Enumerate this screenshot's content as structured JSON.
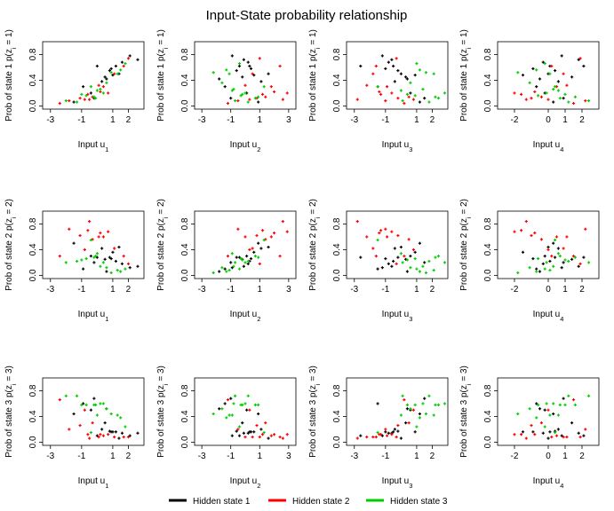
{
  "chart_data": {
    "type": "scatter",
    "title": "Input-State probability relationship",
    "legend": {
      "placement": "bottom-center",
      "entries": [
        {
          "label": "Hidden state 1",
          "color": "#000000"
        },
        {
          "label": "Hidden state 2",
          "color": "#ff0000"
        },
        {
          "label": "Hidden state 3",
          "color": "#00cd00"
        }
      ]
    },
    "panels": [
      {
        "state": 1,
        "input": 1,
        "ylabel": "Prob of state 1 p(z_i = 1)",
        "xlabel": "Input u_1",
        "xlim": [
          -3.5,
          3
        ],
        "ylim": [
          -0.05,
          1.0
        ],
        "xticks": [
          "-3",
          "-1",
          "1",
          "2"
        ],
        "yticks": [
          "0.0",
          "0.4",
          "0.8"
        ]
      },
      {
        "state": 1,
        "input": 2,
        "ylabel": "Prob of state 1 p(z_i = 1)",
        "xlabel": "Input u_2",
        "xlim": [
          -3.5,
          3.5
        ],
        "ylim": [
          -0.05,
          1.0
        ],
        "xticks": [
          "-3",
          "-1",
          "1",
          "3"
        ],
        "yticks": [
          "0.0",
          "0.4",
          "0.8"
        ]
      },
      {
        "state": 1,
        "input": 3,
        "ylabel": "Prob of state 1 p(z_i = 1)",
        "xlabel": "Input u_3",
        "xlim": [
          -3.5,
          3
        ],
        "ylim": [
          -0.05,
          1.0
        ],
        "xticks": [
          "-3",
          "-1",
          "1",
          "2"
        ],
        "yticks": [
          "0.0",
          "0.4",
          "0.8"
        ]
      },
      {
        "state": 1,
        "input": 4,
        "ylabel": "Prob of state 1 p(z_i = 1)",
        "xlabel": "Input u_4",
        "xlim": [
          -3,
          3
        ],
        "ylim": [
          -0.05,
          1.0
        ],
        "xticks": [
          "-2",
          "0",
          "1",
          "2"
        ],
        "yticks": [
          "0.0",
          "0.4",
          "0.8"
        ]
      },
      {
        "state": 2,
        "input": 1,
        "ylabel": "Prob of state 2 p(z_i = 2)",
        "xlabel": "Input u_1",
        "xlim": [
          -3.5,
          3
        ],
        "ylim": [
          -0.05,
          1.0
        ],
        "xticks": [
          "-3",
          "-1",
          "1",
          "2"
        ],
        "yticks": [
          "0.0",
          "0.4",
          "0.8"
        ]
      },
      {
        "state": 2,
        "input": 2,
        "ylabel": "Prob of state 2 p(z_i = 2)",
        "xlabel": "Input u_2",
        "xlim": [
          -3.5,
          3.5
        ],
        "ylim": [
          -0.05,
          1.0
        ],
        "xticks": [
          "-3",
          "-1",
          "1",
          "3"
        ],
        "yticks": [
          "0.0",
          "0.4",
          "0.8"
        ]
      },
      {
        "state": 2,
        "input": 3,
        "ylabel": "Prob of state 2 p(z_i = 2)",
        "xlabel": "Input u_3",
        "xlim": [
          -3.5,
          3
        ],
        "ylim": [
          -0.05,
          1.0
        ],
        "xticks": [
          "-3",
          "-1",
          "1",
          "2"
        ],
        "yticks": [
          "0.0",
          "0.4",
          "0.8"
        ]
      },
      {
        "state": 2,
        "input": 4,
        "ylabel": "Prob of state 2 p(z_i = 2)",
        "xlabel": "Input u_4",
        "xlim": [
          -3,
          3
        ],
        "ylim": [
          -0.05,
          1.0
        ],
        "xticks": [
          "-2",
          "0",
          "1",
          "2"
        ],
        "yticks": [
          "0.0",
          "0.4",
          "0.8"
        ]
      },
      {
        "state": 3,
        "input": 1,
        "ylabel": "Prob of state 3 p(z_i = 3)",
        "xlabel": "Input u_1",
        "xlim": [
          -3.5,
          3
        ],
        "ylim": [
          -0.05,
          1.0
        ],
        "xticks": [
          "-3",
          "-1",
          "1",
          "2"
        ],
        "yticks": [
          "0.0",
          "0.4",
          "0.8"
        ]
      },
      {
        "state": 3,
        "input": 2,
        "ylabel": "Prob of state 3 p(z_i = 3)",
        "xlabel": "Input u_2",
        "xlim": [
          -3.5,
          3.5
        ],
        "ylim": [
          -0.05,
          1.0
        ],
        "xticks": [
          "-3",
          "-1",
          "1",
          "3"
        ],
        "yticks": [
          "0.0",
          "0.4",
          "0.8"
        ]
      },
      {
        "state": 3,
        "input": 3,
        "ylabel": "Prob of state 3 p(z_i = 3)",
        "xlabel": "Input u_3",
        "xlim": [
          -3.5,
          3
        ],
        "ylim": [
          -0.05,
          1.0
        ],
        "xticks": [
          "-3",
          "-1",
          "1",
          "2"
        ],
        "yticks": [
          "0.0",
          "0.4",
          "0.8"
        ]
      },
      {
        "state": 3,
        "input": 4,
        "ylabel": "Prob of state 3 p(z_i = 3)",
        "xlabel": "Input u_4",
        "xlim": [
          -3,
          3
        ],
        "ylim": [
          -0.05,
          1.0
        ],
        "xticks": [
          "-2",
          "0",
          "1",
          "2"
        ],
        "yticks": [
          "0.0",
          "0.4",
          "0.8"
        ]
      }
    ],
    "series": [
      {
        "name": "Hidden state 1",
        "color": "#000000",
        "points": [
          {
            "u": [
              1.2,
              0.3,
              -0.5,
              0.1
            ],
            "p": [
              0.62,
              0.22,
              0.16
            ]
          },
          {
            "u": [
              0.8,
              -0.6,
              -0.2,
              0.4
            ],
            "p": [
              0.55,
              0.28,
              0.17
            ]
          },
          {
            "u": [
              1.6,
              0.2,
              -0.8,
              -0.3
            ],
            "p": [
              0.68,
              0.18,
              0.14
            ]
          },
          {
            "u": [
              0.3,
              1.1,
              -0.4,
              0.6
            ],
            "p": [
              0.38,
              0.42,
              0.2
            ]
          },
          {
            "u": [
              -0.4,
              0.1,
              0.6,
              -0.2
            ],
            "p": [
              0.2,
              0.3,
              0.5
            ]
          },
          {
            "u": [
              2.1,
              -0.9,
              -1.2,
              0.8
            ],
            "p": [
              0.78,
              0.12,
              0.1
            ]
          },
          {
            "u": [
              0.5,
              -0.2,
              0.3,
              1.4
            ],
            "p": [
              0.45,
              0.25,
              0.3
            ]
          },
          {
            "u": [
              -0.9,
              -1.4,
              -1.5,
              -0.7
            ],
            "p": [
              0.3,
              0.1,
              0.6
            ]
          },
          {
            "u": [
              1.0,
              0.6,
              0.9,
              -1.5
            ],
            "p": [
              0.48,
              0.36,
              0.16
            ]
          },
          {
            "u": [
              0.0,
              -0.4,
              -2.6,
              2.1
            ],
            "p": [
              0.62,
              0.28,
              0.1
            ]
          },
          {
            "u": [
              1.4,
              1.6,
              0.0,
              0.0
            ],
            "p": [
              0.5,
              0.44,
              0.06
            ]
          },
          {
            "u": [
              -0.2,
              -1.0,
              1.5,
              0.9
            ],
            "p": [
              0.12,
              0.2,
              0.68
            ]
          },
          {
            "u": [
              0.9,
              0.4,
              -1.0,
              -0.9
            ],
            "p": [
              0.58,
              0.26,
              0.16
            ]
          },
          {
            "u": [
              -1.5,
              0.9,
              1.2,
              0.3
            ],
            "p": [
              0.06,
              0.5,
              0.44
            ]
          },
          {
            "u": [
              2.6,
              -0.1,
              -0.6,
              1.8
            ],
            "p": [
              0.72,
              0.14,
              0.14
            ]
          },
          {
            "u": [
              0.6,
              -1.8,
              0.4,
              -0.5
            ],
            "p": [
              0.42,
              0.06,
              0.52
            ]
          }
        ]
      },
      {
        "name": "Hidden state 2",
        "color": "#ff0000",
        "points": [
          {
            "u": [
              -0.6,
              1.2,
              -1.3,
              -1.6
            ],
            "p": [
              0.18,
              0.7,
              0.12
            ]
          },
          {
            "u": [
              0.4,
              1.8,
              -0.9,
              0.5
            ],
            "p": [
              0.3,
              0.6,
              0.1
            ]
          },
          {
            "u": [
              -1.1,
              0.8,
              -0.2,
              -1.0
            ],
            "p": [
              0.12,
              0.62,
              0.26
            ]
          },
          {
            "u": [
              1.7,
              2.4,
              -1.6,
              0.2
            ],
            "p": [
              0.62,
              0.3,
              0.08
            ]
          },
          {
            "u": [
              0.1,
              0.0,
              -2.2,
              1.1
            ],
            "p": [
              0.32,
              0.6,
              0.08
            ]
          },
          {
            "u": [
              -0.3,
              1.4,
              0.5,
              -0.4
            ],
            "p": [
              0.14,
              0.56,
              0.3
            ]
          },
          {
            "u": [
              -1.8,
              -0.5,
              -1.0,
              2.2
            ],
            "p": [
              0.08,
              0.72,
              0.2
            ]
          },
          {
            "u": [
              0.7,
              2.9,
              -0.6,
              -2.0
            ],
            "p": [
              0.2,
              0.68,
              0.12
            ]
          },
          {
            "u": [
              1.1,
              0.5,
              -1.8,
              0.9
            ],
            "p": [
              0.5,
              0.42,
              0.08
            ]
          },
          {
            "u": [
              -2.4,
              -1.2,
              0.2,
              1.5
            ],
            "p": [
              0.04,
              0.3,
              0.66
            ]
          },
          {
            "u": [
              0.2,
              2.0,
              -1.4,
              -0.8
            ],
            "p": [
              0.22,
              0.66,
              0.12
            ]
          },
          {
            "u": [
              -0.8,
              0.3,
              0.8,
              0.0
            ],
            "p": [
              0.1,
              0.4,
              0.5
            ]
          },
          {
            "u": [
              2.0,
              1.0,
              -0.3,
              1.9
            ],
            "p": [
              0.74,
              0.18,
              0.08
            ]
          },
          {
            "u": [
              -0.5,
              2.6,
              -2.8,
              -1.3
            ],
            "p": [
              0.1,
              0.84,
              0.06
            ]
          }
        ]
      },
      {
        "name": "Hidden state 3",
        "color": "#00cd00",
        "points": [
          {
            "u": [
              0.2,
              -0.8,
              1.4,
              0.3
            ],
            "p": [
              0.26,
              0.14,
              0.6
            ]
          },
          {
            "u": [
              -0.7,
              -0.3,
              0.9,
              -0.6
            ],
            "p": [
              0.16,
              0.26,
              0.58
            ]
          },
          {
            "u": [
              1.3,
              -1.1,
              2.1,
              0.1
            ],
            "p": [
              0.5,
              0.08,
              0.42
            ]
          },
          {
            "u": [
              -1.3,
              0.2,
              1.8,
              1.2
            ],
            "p": [
              0.06,
              0.22,
              0.72
            ]
          },
          {
            "u": [
              0.6,
              -1.6,
              0.6,
              -1.1
            ],
            "p": [
              0.36,
              0.12,
              0.52
            ]
          },
          {
            "u": [
              -0.1,
              0.7,
              2.4,
              0.7
            ],
            "p": [
              0.12,
              0.3,
              0.58
            ]
          },
          {
            "u": [
              1.8,
              -0.4,
              1.0,
              -0.2
            ],
            "p": [
              0.66,
              0.1,
              0.24
            ]
          },
          {
            "u": [
              -2.0,
              -0.7,
              0.1,
              2.4
            ],
            "p": [
              0.08,
              0.2,
              0.72
            ]
          },
          {
            "u": [
              0.9,
              -2.2,
              1.6,
              -1.8
            ],
            "p": [
              0.52,
              0.04,
              0.44
            ]
          },
          {
            "u": [
              -0.4,
              1.3,
              -1.5,
              0.4
            ],
            "p": [
              0.3,
              0.55,
              0.15
            ]
          },
          {
            "u": [
              0.4,
              0.0,
              2.8,
              -0.1
            ],
            "p": [
              0.2,
              0.2,
              0.6
            ]
          },
          {
            "u": [
              -1.0,
              -0.2,
              0.4,
              1.0
            ],
            "p": [
              0.18,
              0.24,
              0.58
            ]
          },
          {
            "u": [
              1.5,
              -1.3,
              1.2,
              -0.7
            ],
            "p": [
              0.56,
              0.06,
              0.38
            ]
          },
          {
            "u": [
              -0.2,
              0.9,
              2.2,
              1.6
            ],
            "p": [
              0.14,
              0.28,
              0.58
            ]
          },
          {
            "u": [
              0.0,
              -0.9,
              0.0,
              0.6
            ],
            "p": [
              0.24,
              0.34,
              0.42
            ]
          }
        ]
      }
    ]
  }
}
